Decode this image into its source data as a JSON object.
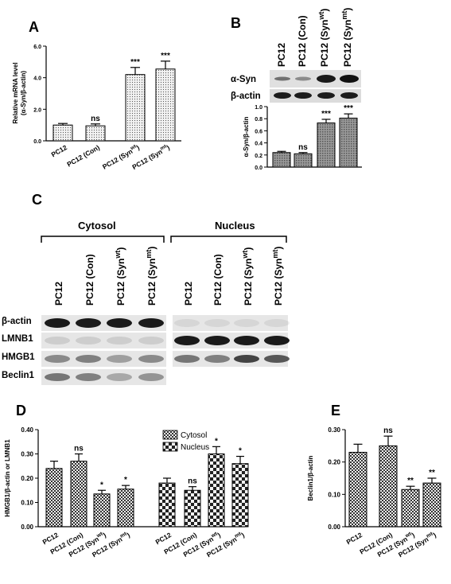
{
  "panel_labels": {
    "A": "A",
    "B": "B",
    "C": "C",
    "D": "D",
    "E": "E"
  },
  "sample_lanes": [
    "PC12",
    "PC12 (Con)",
    "PC12 (Syn",
    "PC12 (Syn"
  ],
  "superscripts": [
    "wt",
    "mt"
  ],
  "panel_b_blots": [
    "α-Syn",
    "β-actin"
  ],
  "panel_c": {
    "groups": [
      "Cytosol",
      "Nucleus"
    ],
    "blots": [
      "β-actin",
      "LMNB1",
      "HMGB1",
      "Beclin1"
    ]
  },
  "colors": {
    "bar_dotted": "#e8e8e8",
    "bar_fill": "#888888",
    "band": "#1e1e1e",
    "membrane": "#e2e2e2"
  },
  "chart_data": [
    {
      "panel": "A",
      "type": "bar",
      "pattern": "dots",
      "categories": [
        "PC12",
        "PC12 (Con)",
        "PC12 (Syn",
        "PC12 (Syn"
      ],
      "category_superscripts": [
        "",
        "",
        "wt",
        "mt"
      ],
      "values": [
        1.0,
        0.95,
        4.2,
        4.55
      ],
      "errors": [
        0.1,
        0.12,
        0.45,
        0.5
      ],
      "significance": [
        "",
        "ns",
        "***",
        "***"
      ],
      "ylabel": "Relative mRNA level",
      "ylabel2": "(α-Syn/β-actin)",
      "ylim": [
        0,
        6.0
      ],
      "yticks": [
        "0.0",
        "2.0",
        "4.0",
        "6.0"
      ],
      "grid": false
    },
    {
      "panel": "B",
      "type": "bar",
      "pattern": "hatch",
      "categories": [
        "PC12",
        "PC12 (Con)",
        "PC12 (Syn",
        "PC12 (Syn"
      ],
      "values": [
        0.24,
        0.22,
        0.73,
        0.81
      ],
      "errors": [
        0.02,
        0.02,
        0.06,
        0.07
      ],
      "significance": [
        "",
        "ns",
        "***",
        "***"
      ],
      "ylabel": "α-Syn/β-actin",
      "ylim": [
        0,
        1.0
      ],
      "yticks": [
        "0.0",
        "0.2",
        "0.4",
        "0.6",
        "0.8",
        "1.0"
      ],
      "grid": false
    },
    {
      "panel": "D",
      "type": "bar",
      "pattern": "checker",
      "categories": [
        "PC12",
        "PC12 (Con)",
        "PC12 (Syn",
        "PC12 (Syn"
      ],
      "category_superscripts": [
        "",
        "",
        "wt",
        "mt"
      ],
      "series": [
        {
          "name": "Cytosol",
          "values": [
            0.24,
            0.27,
            0.135,
            0.155
          ],
          "errors": [
            0.03,
            0.03,
            0.015,
            0.015
          ],
          "significance": [
            "",
            "ns",
            "*",
            "*"
          ]
        },
        {
          "name": "Nucleus",
          "values": [
            0.18,
            0.15,
            0.3,
            0.26
          ],
          "errors": [
            0.02,
            0.015,
            0.03,
            0.03
          ],
          "significance": [
            "",
            "ns",
            "*",
            "*"
          ]
        }
      ],
      "ylabel": "HMGB1/β-actin or LMNB1",
      "ylim": [
        0,
        0.4
      ],
      "yticks": [
        "0.00",
        "0.10",
        "0.20",
        "0.30",
        "0.40"
      ],
      "legend": "top-center",
      "grid": false
    },
    {
      "panel": "E",
      "type": "bar",
      "pattern": "checker",
      "categories": [
        "PC12",
        "PC12 (Con)",
        "PC12 (Syn",
        "PC12 (Syn"
      ],
      "category_superscripts": [
        "",
        "",
        "wt",
        "mt"
      ],
      "values": [
        0.23,
        0.25,
        0.115,
        0.135
      ],
      "errors": [
        0.025,
        0.03,
        0.01,
        0.015
      ],
      "significance": [
        "",
        "ns",
        "**",
        "**"
      ],
      "ylabel": "Beclin1/β-actin",
      "ylim": [
        0,
        0.3
      ],
      "yticks": [
        "0.00",
        "0.10",
        "0.20",
        "0.30"
      ],
      "grid": false
    }
  ]
}
